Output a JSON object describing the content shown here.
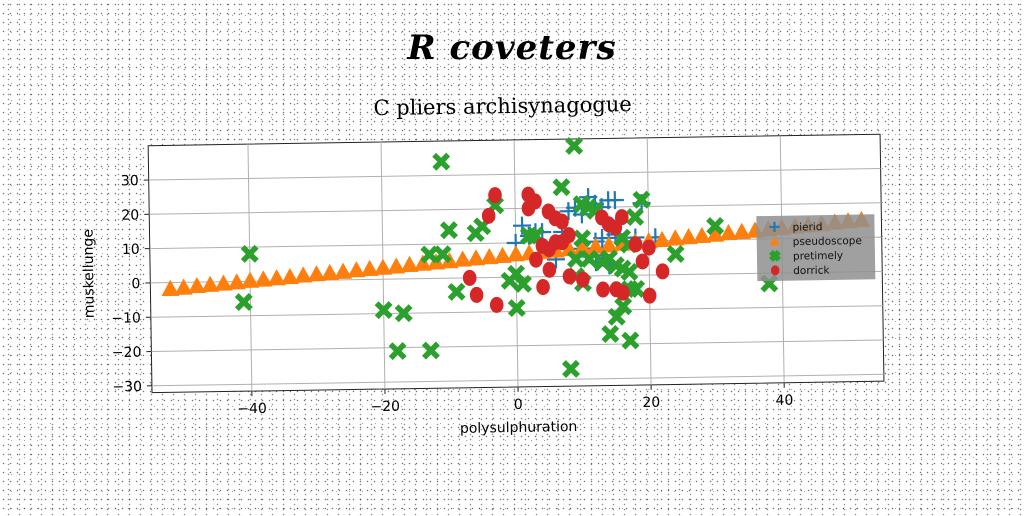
{
  "page_title": "R coveters",
  "chart_data": {
    "type": "scatter",
    "title": "C pliers archisynagogue",
    "xlabel": "polysulphuration",
    "ylabel": "muskellunge",
    "xlim": [
      -55,
      55
    ],
    "ylim": [
      -32,
      40
    ],
    "xticks": [
      -40,
      -20,
      0,
      20,
      40
    ],
    "yticks": [
      -30,
      -20,
      -10,
      0,
      10,
      20,
      30
    ],
    "grid": true,
    "legend_position": "right",
    "series": [
      {
        "name": "pierid",
        "marker": "plus",
        "color": "#1f77b4",
        "points": [
          [
            11,
            23
          ],
          [
            12,
            21
          ],
          [
            13,
            20
          ],
          [
            14,
            22
          ],
          [
            15,
            22
          ],
          [
            19,
            21
          ],
          [
            8,
            19
          ],
          [
            9,
            20
          ],
          [
            10,
            18
          ],
          [
            1,
            15
          ],
          [
            3,
            13
          ],
          [
            4,
            13
          ],
          [
            7,
            13
          ],
          [
            12,
            10
          ],
          [
            13,
            11
          ],
          [
            14,
            11
          ],
          [
            15,
            12
          ],
          [
            18,
            11
          ],
          [
            21,
            11
          ],
          [
            2,
            12
          ],
          [
            0,
            10
          ],
          [
            10,
            8
          ],
          [
            13,
            6
          ],
          [
            14,
            3
          ],
          [
            12,
            4
          ],
          [
            6,
            5
          ]
        ]
      },
      {
        "name": "pseudoscope",
        "marker": "triangle",
        "color": "#ff7f0e",
        "points": [
          [
            -52,
            -1.8
          ],
          [
            -50,
            -1.5
          ],
          [
            -48,
            -1.1
          ],
          [
            -46,
            -0.8
          ],
          [
            -44,
            -0.5
          ],
          [
            -42,
            -0.2
          ],
          [
            -40,
            0.2
          ],
          [
            -38,
            0.5
          ],
          [
            -36,
            0.8
          ],
          [
            -34,
            1.1
          ],
          [
            -32,
            1.5
          ],
          [
            -30,
            1.8
          ],
          [
            -28,
            2.1
          ],
          [
            -26,
            2.4
          ],
          [
            -24,
            2.8
          ],
          [
            -22,
            3.1
          ],
          [
            -20,
            3.4
          ],
          [
            -18,
            3.7
          ],
          [
            -16,
            4.1
          ],
          [
            -14,
            4.4
          ],
          [
            -12,
            4.7
          ],
          [
            -10,
            5.0
          ],
          [
            -8,
            5.4
          ],
          [
            -6,
            5.7
          ],
          [
            -4,
            6.0
          ],
          [
            -2,
            6.3
          ],
          [
            0,
            6.7
          ],
          [
            2,
            7.0
          ],
          [
            4,
            7.3
          ],
          [
            6,
            7.6
          ],
          [
            8,
            8.0
          ],
          [
            10,
            8.3
          ],
          [
            12,
            8.6
          ],
          [
            14,
            8.9
          ],
          [
            16,
            9.3
          ],
          [
            18,
            9.6
          ],
          [
            20,
            9.9
          ],
          [
            22,
            10.2
          ],
          [
            24,
            10.6
          ],
          [
            26,
            10.9
          ],
          [
            28,
            11.2
          ],
          [
            30,
            11.5
          ],
          [
            32,
            11.9
          ],
          [
            34,
            12.2
          ],
          [
            36,
            12.5
          ],
          [
            38,
            12.8
          ],
          [
            40,
            13.2
          ],
          [
            42,
            13.5
          ],
          [
            44,
            13.8
          ],
          [
            46,
            14.1
          ],
          [
            48,
            14.5
          ],
          [
            50,
            14.8
          ],
          [
            52,
            15.1
          ]
        ]
      },
      {
        "name": "pretimely",
        "marker": "x",
        "color": "#2ca02c",
        "points": [
          [
            -11,
            34
          ],
          [
            9,
            38
          ],
          [
            7,
            26
          ],
          [
            10,
            21
          ],
          [
            11,
            20
          ],
          [
            12,
            19
          ],
          [
            19,
            22
          ],
          [
            18,
            17
          ],
          [
            -3,
            21
          ],
          [
            -10,
            14
          ],
          [
            -5,
            15
          ],
          [
            -6,
            13
          ],
          [
            2,
            12
          ],
          [
            3,
            12
          ],
          [
            10,
            11
          ],
          [
            16,
            11
          ],
          [
            17,
            9
          ],
          [
            24,
            6
          ],
          [
            -13,
            7
          ],
          [
            -11,
            7
          ],
          [
            -40,
            8
          ],
          [
            9,
            5
          ],
          [
            11,
            5
          ],
          [
            13,
            4
          ],
          [
            14,
            5
          ],
          [
            15,
            3
          ],
          [
            16,
            2
          ],
          [
            17,
            1
          ],
          [
            0,
            1
          ],
          [
            -1,
            -1
          ],
          [
            1,
            -2
          ],
          [
            9,
            0
          ],
          [
            10,
            -2
          ],
          [
            17,
            -4
          ],
          [
            18,
            -4
          ],
          [
            16,
            -9
          ],
          [
            15,
            -12
          ],
          [
            14,
            -17
          ],
          [
            17,
            -19
          ],
          [
            -9,
            -4
          ],
          [
            -41,
            -6
          ],
          [
            -20,
            -9
          ],
          [
            -17,
            -10
          ],
          [
            -18,
            -21
          ],
          [
            -13,
            -21
          ],
          [
            0,
            -9
          ],
          [
            8,
            -27
          ],
          [
            30,
            14
          ],
          [
            38,
            -3
          ]
        ]
      },
      {
        "name": "dorrick",
        "marker": "circle",
        "color": "#d62728",
        "points": [
          [
            -3,
            24
          ],
          [
            2,
            24
          ],
          [
            3,
            22
          ],
          [
            2,
            20
          ],
          [
            5,
            19
          ],
          [
            6,
            17
          ],
          [
            7,
            16
          ],
          [
            -4,
            18
          ],
          [
            13,
            17
          ],
          [
            14,
            15
          ],
          [
            15,
            14
          ],
          [
            16,
            17
          ],
          [
            8,
            12
          ],
          [
            4,
            9
          ],
          [
            5,
            8
          ],
          [
            6,
            10
          ],
          [
            7,
            10
          ],
          [
            18,
            9
          ],
          [
            20,
            8
          ],
          [
            19,
            4
          ],
          [
            3,
            5
          ],
          [
            5,
            2
          ],
          [
            8,
            0
          ],
          [
            4,
            -3
          ],
          [
            -7,
            0
          ],
          [
            -6,
            -5
          ],
          [
            -3,
            -8
          ],
          [
            10,
            -1
          ],
          [
            13,
            -4
          ],
          [
            15,
            -4
          ],
          [
            16,
            -5
          ],
          [
            20,
            -6
          ],
          [
            22,
            1
          ]
        ]
      }
    ]
  }
}
